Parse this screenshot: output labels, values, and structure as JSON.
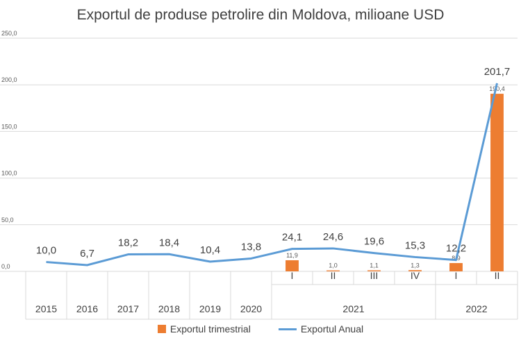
{
  "chart_data": {
    "type": "bar+line",
    "title": "Exportul de produse petrolire din Moldova, milioane USD",
    "ylim": [
      0,
      250
    ],
    "y_ticks": [
      "0,0",
      "50,0",
      "100,0",
      "150,0",
      "200,0",
      "250,0"
    ],
    "grid": true,
    "legend_position": "bottom",
    "categories": [
      {
        "label": "2015",
        "group": ""
      },
      {
        "label": "2016",
        "group": ""
      },
      {
        "label": "2017",
        "group": ""
      },
      {
        "label": "2018",
        "group": ""
      },
      {
        "label": "2019",
        "group": ""
      },
      {
        "label": "2020",
        "group": ""
      },
      {
        "label": "I",
        "group": "2021"
      },
      {
        "label": "II",
        "group": "2021"
      },
      {
        "label": "III",
        "group": "2021"
      },
      {
        "label": "IV",
        "group": "2021"
      },
      {
        "label": "I",
        "group": "2022"
      },
      {
        "label": "II",
        "group": "2022"
      }
    ],
    "groups": [
      "2021",
      "2022"
    ],
    "series": [
      {
        "name": "Exportul trimestrial",
        "kind": "bar",
        "color": "#ED7D31",
        "values": [
          null,
          null,
          null,
          null,
          null,
          null,
          11.9,
          1.0,
          1.1,
          1.3,
          8.9,
          190.4
        ],
        "labels": [
          "",
          "",
          "",
          "",
          "",
          "",
          "11,9",
          "1,0",
          "1,1",
          "1,3",
          "8,9",
          "190,4"
        ]
      },
      {
        "name": "Exportul Anual",
        "kind": "line",
        "color": "#5B9BD5",
        "values": [
          10.0,
          6.7,
          18.2,
          18.4,
          10.4,
          13.8,
          24.1,
          24.6,
          19.6,
          15.3,
          12.2,
          201.7
        ],
        "labels": [
          "10,0",
          "6,7",
          "18,2",
          "18,4",
          "10,4",
          "13,8",
          "24,1",
          "24,6",
          "19,6",
          "15,3",
          "12,2",
          "201,7"
        ]
      }
    ]
  }
}
